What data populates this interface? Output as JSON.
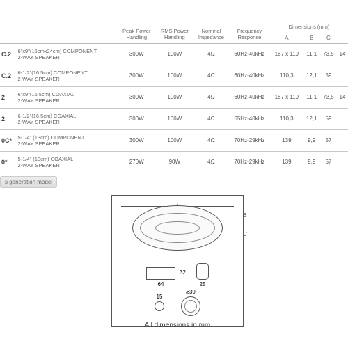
{
  "headers": {
    "desc": "",
    "peak": "Peak Power\nHandling",
    "rms": "RMS Power\nHandling",
    "imp": "Nominal\nImpedance",
    "freq": "Frequency\nResponse",
    "dim_group": "Dimensions (mm)",
    "A": "A",
    "B": "B",
    "C": "C",
    "D": ""
  },
  "rows": [
    {
      "model": "C.2",
      "desc_l1": "6\"x9\"(16cmx24cm) COMPONENT",
      "desc_l2": "2-WAY SPEAKER",
      "peak": "300W",
      "rms": "100W",
      "imp": "4Ω",
      "freq": "60Hz-40kHz",
      "A": "167 x 119",
      "B": "11,1",
      "C": "73,5",
      "D": "14"
    },
    {
      "model": "C.2",
      "desc_l1": "6-1/2\"(16.5cm) COMPONENT",
      "desc_l2": "2-WAY SPEAKER",
      "peak": "300W",
      "rms": "100W",
      "imp": "4Ω",
      "freq": "60Hz-40kHz",
      "A": "110,3",
      "B": "12,1",
      "C": "59",
      "D": ""
    },
    {
      "model": "2",
      "desc_l1": "6\"x9\"(16.5cm) COAXIAL",
      "desc_l2": "2-WAY SPEAKER",
      "peak": "300W",
      "rms": "100W",
      "imp": "4Ω",
      "freq": "60Hz-40kHz",
      "A": "167 x 119",
      "B": "11,1",
      "C": "73,5",
      "D": "14"
    },
    {
      "model": "2",
      "desc_l1": "6-1/2\"(16.5cm) COAXIAL",
      "desc_l2": "2-WAY SPEAKER",
      "peak": "300W",
      "rms": "100W",
      "imp": "4Ω",
      "freq": "65Hz-40kHz",
      "A": "110,3",
      "B": "12,1",
      "C": "59",
      "D": ""
    },
    {
      "model": "0C*",
      "desc_l1": "5-1/4\" (13cm) COMPONENT",
      "desc_l2": "2-WAY SPEAKER",
      "peak": "300W",
      "rms": "100W",
      "imp": "4Ω",
      "freq": "70Hz-29kHz",
      "A": "139",
      "B": "9,9",
      "C": "57",
      "D": ""
    },
    {
      "model": "0*",
      "desc_l1": "5-1/4\" (13cm) COAXIAL",
      "desc_l2": "2-WAY SPEAKER",
      "peak": "270W",
      "rms": "90W",
      "imp": "4Ω",
      "freq": "70Hz-29kHz",
      "A": "139",
      "B": "9,9",
      "C": "57",
      "D": ""
    }
  ],
  "footnote": "s generation model",
  "diagram": {
    "A": "A",
    "B": "B",
    "C": "C",
    "w64": "64",
    "h32": "32",
    "w25": "25",
    "d15": "15",
    "d39": "⌀39",
    "caption": "All dimensions in mm"
  }
}
